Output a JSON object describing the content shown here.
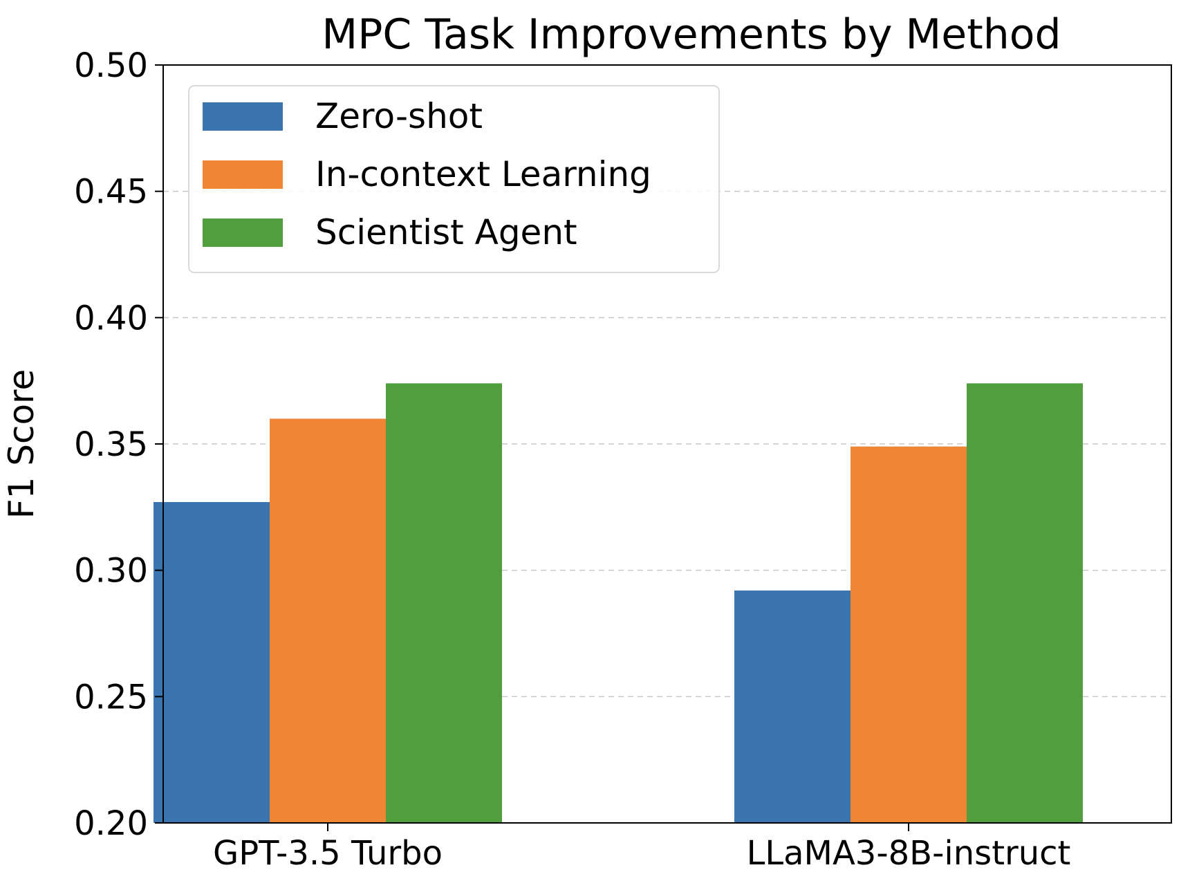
{
  "chart_data": {
    "type": "bar",
    "title": "MPC Task Improvements by Method",
    "xlabel": "",
    "ylabel": "F1 Score",
    "categories": [
      "GPT-3.5 Turbo",
      "LLaMA3-8B-instruct"
    ],
    "series": [
      {
        "name": "Zero-shot",
        "values": [
          0.327,
          0.292
        ],
        "color": "#3a75af"
      },
      {
        "name": "In-context Learning",
        "values": [
          0.36,
          0.349
        ],
        "color": "#ef8636"
      },
      {
        "name": "Scientist Agent",
        "values": [
          0.374,
          0.374
        ],
        "color": "#519e3e"
      }
    ],
    "ylim": [
      0.2,
      0.5
    ],
    "yticks": [
      "0.20",
      "0.25",
      "0.30",
      "0.35",
      "0.40",
      "0.45",
      "0.50"
    ],
    "grid": "y-dashed",
    "legend_position": "top-left"
  }
}
